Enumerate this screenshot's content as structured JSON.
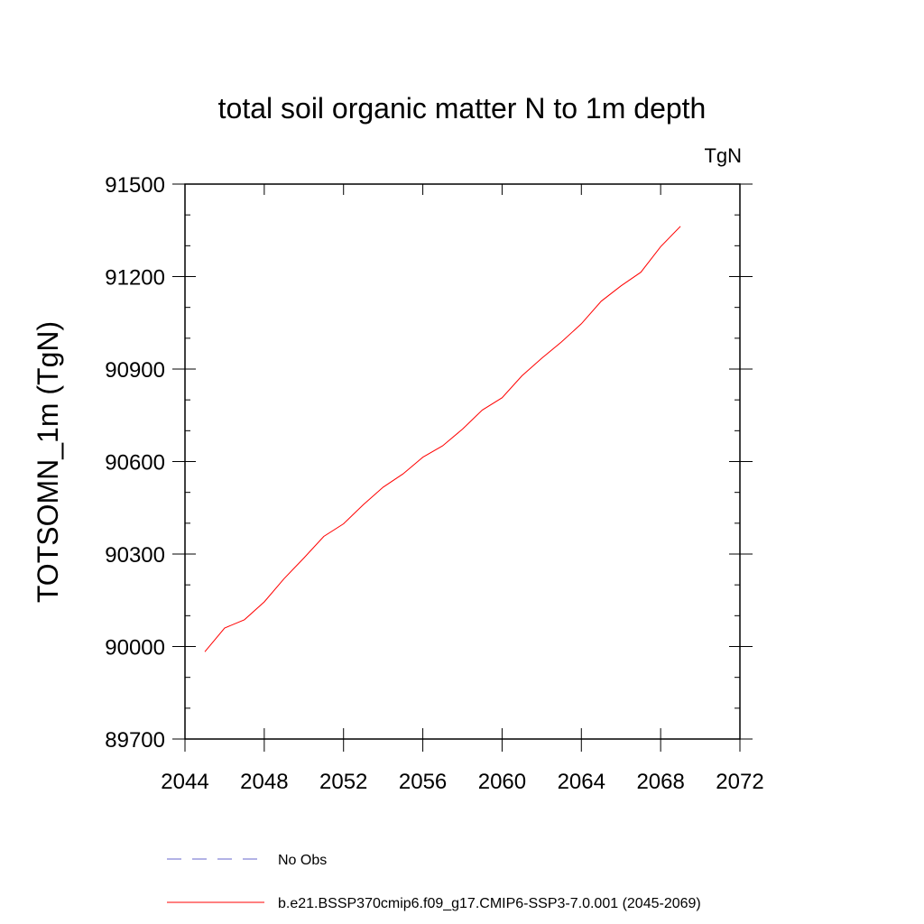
{
  "chart_data": {
    "type": "line",
    "title": "total soil organic matter N to 1m depth",
    "units": "TgN",
    "xlabel": "",
    "ylabel": "TOTSOMN_1m  (TgN)",
    "xlim": [
      2044,
      2072
    ],
    "ylim": [
      89700,
      91500
    ],
    "x_ticks": [
      "2044",
      "2048",
      "2052",
      "2056",
      "2060",
      "2064",
      "2068",
      "2072"
    ],
    "y_ticks": [
      "89700",
      "90000",
      "90300",
      "90600",
      "90900",
      "91200",
      "91500"
    ],
    "grid": false,
    "legend_position": "bottom",
    "legend": [
      {
        "label": "No Obs",
        "color": "#6666cc",
        "style": "dashed"
      },
      {
        "label": "b.e21.BSSP370cmip6.f09_g17.CMIP6-SSP3-7.0.001 (2045-2069)",
        "color": "#ff0000",
        "style": "solid"
      }
    ],
    "series": [
      {
        "name": "b.e21.BSSP370cmip6.f09_g17.CMIP6-SSP3-7.0.001 (2045-2069)",
        "color": "#ff0000",
        "x": [
          2045,
          2046,
          2047,
          2048,
          2049,
          2050,
          2051,
          2052,
          2053,
          2054,
          2055,
          2056,
          2057,
          2058,
          2059,
          2060,
          2061,
          2062,
          2063,
          2064,
          2065,
          2066,
          2067,
          2068,
          2069
        ],
        "y": [
          89983,
          90060,
          90087,
          90145,
          90220,
          90287,
          90357,
          90398,
          90460,
          90517,
          90560,
          90614,
          90651,
          90705,
          90767,
          90807,
          90878,
          90935,
          90988,
          91047,
          91120,
          91170,
          91214,
          91297,
          91363
        ]
      }
    ]
  }
}
